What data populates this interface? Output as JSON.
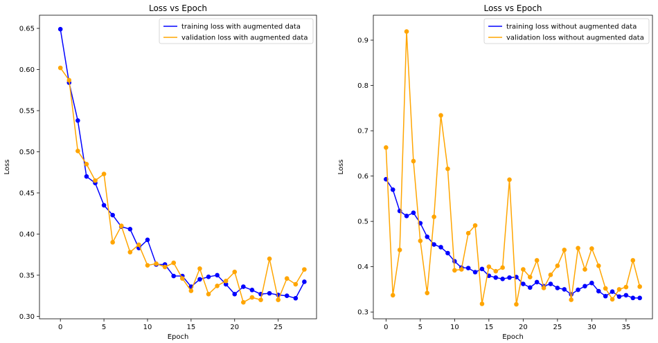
{
  "chart_data": [
    {
      "type": "line",
      "title": "Loss vs Epoch",
      "xlabel": "Epoch",
      "ylabel": "Loss",
      "xlim": [
        -2.4,
        29.4
      ],
      "ylim": [
        0.297,
        0.666
      ],
      "xticks": [
        0,
        5,
        10,
        15,
        20,
        25
      ],
      "yticks": [
        0.3,
        0.35,
        0.4,
        0.45,
        0.5,
        0.55,
        0.6,
        0.65
      ],
      "ytick_labels": [
        "0.30",
        "0.35",
        "0.40",
        "0.45",
        "0.50",
        "0.55",
        "0.60",
        "0.65"
      ],
      "grid": false,
      "legend": "top-right",
      "x": [
        0,
        1,
        2,
        3,
        4,
        5,
        6,
        7,
        8,
        9,
        10,
        11,
        12,
        13,
        14,
        15,
        16,
        17,
        18,
        19,
        20,
        21,
        22,
        23,
        24,
        25,
        26,
        27,
        28
      ],
      "series": [
        {
          "name": "training loss with augmented data",
          "color": "#0000ff",
          "values": [
            0.649,
            0.584,
            0.538,
            0.47,
            0.462,
            0.435,
            0.423,
            0.409,
            0.406,
            0.383,
            0.393,
            0.363,
            0.363,
            0.349,
            0.349,
            0.336,
            0.345,
            0.348,
            0.35,
            0.339,
            0.327,
            0.336,
            0.332,
            0.327,
            0.328,
            0.326,
            0.325,
            0.322,
            0.342
          ]
        },
        {
          "name": "validation loss with augmented data",
          "color": "#ffa500",
          "values": [
            0.602,
            0.587,
            0.501,
            0.485,
            0.465,
            0.473,
            0.39,
            0.41,
            0.378,
            0.387,
            0.362,
            0.364,
            0.36,
            0.365,
            0.346,
            0.331,
            0.358,
            0.327,
            0.337,
            0.343,
            0.354,
            0.317,
            0.323,
            0.32,
            0.37,
            0.32,
            0.346,
            0.339,
            0.357
          ]
        }
      ]
    },
    {
      "type": "line",
      "title": "Loss vs Epoch",
      "xlabel": "Epoch",
      "ylabel": "Loss",
      "xlim": [
        -1.85,
        38.85
      ],
      "ylim": [
        0.285,
        0.955
      ],
      "xticks": [
        0,
        5,
        10,
        15,
        20,
        25,
        30,
        35
      ],
      "yticks": [
        0.3,
        0.4,
        0.5,
        0.6,
        0.7,
        0.8,
        0.9
      ],
      "ytick_labels": [
        "0.3",
        "0.4",
        "0.5",
        "0.6",
        "0.7",
        "0.8",
        "0.9"
      ],
      "grid": false,
      "legend": "top-right",
      "x": [
        0,
        1,
        2,
        3,
        4,
        5,
        6,
        7,
        8,
        9,
        10,
        11,
        12,
        13,
        14,
        15,
        16,
        17,
        18,
        19,
        20,
        21,
        22,
        23,
        24,
        25,
        26,
        27,
        28,
        29,
        30,
        31,
        32,
        33,
        34,
        35,
        36,
        37
      ],
      "series": [
        {
          "name": "training loss without augmented data",
          "color": "#0000ff",
          "values": [
            0.593,
            0.57,
            0.523,
            0.512,
            0.519,
            0.496,
            0.466,
            0.449,
            0.443,
            0.43,
            0.412,
            0.398,
            0.397,
            0.388,
            0.395,
            0.38,
            0.376,
            0.373,
            0.376,
            0.377,
            0.362,
            0.354,
            0.366,
            0.357,
            0.362,
            0.353,
            0.35,
            0.339,
            0.349,
            0.357,
            0.364,
            0.346,
            0.335,
            0.345,
            0.334,
            0.337,
            0.331,
            0.331
          ]
        },
        {
          "name": "validation loss without augmented data",
          "color": "#ffa500",
          "values": [
            0.663,
            0.337,
            0.437,
            0.919,
            0.633,
            0.457,
            0.342,
            0.51,
            0.734,
            0.616,
            0.392,
            0.394,
            0.474,
            0.491,
            0.318,
            0.4,
            0.39,
            0.398,
            0.592,
            0.317,
            0.394,
            0.377,
            0.414,
            0.353,
            0.382,
            0.402,
            0.437,
            0.327,
            0.441,
            0.394,
            0.44,
            0.402,
            0.352,
            0.328,
            0.35,
            0.355,
            0.414,
            0.356
          ]
        }
      ]
    }
  ]
}
